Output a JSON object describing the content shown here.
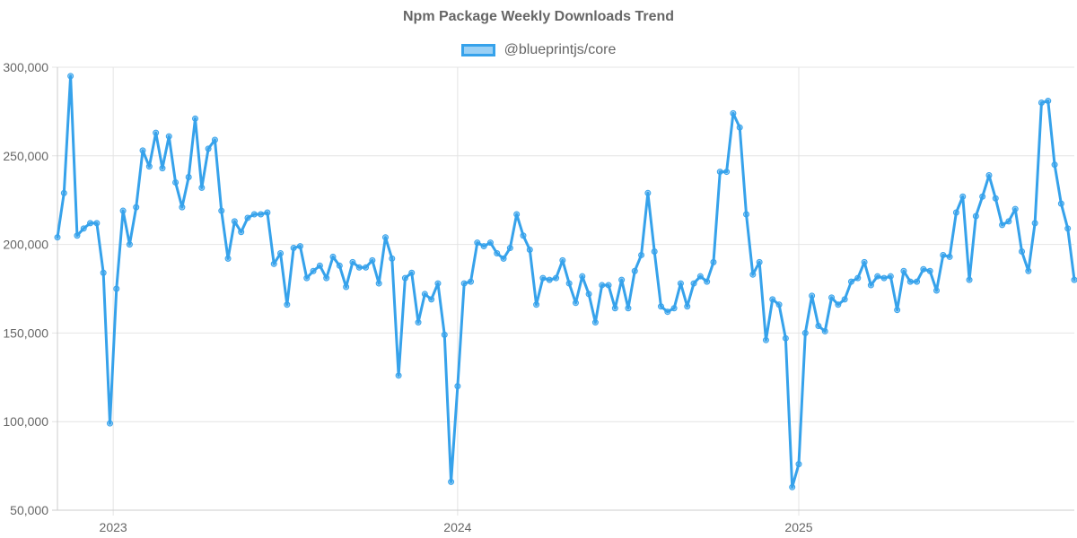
{
  "chart_data": {
    "type": "line",
    "title": "Npm Package Weekly Downloads Trend",
    "xlabel": "",
    "ylabel": "",
    "ylim": [
      50000,
      300000
    ],
    "y_ticks": [
      300000,
      250000,
      200000,
      150000,
      100000,
      50000
    ],
    "y_tick_labels": [
      "300,000",
      "250,000",
      "200,000",
      "150,000",
      "100,000",
      "50,000"
    ],
    "x_ticks": [
      {
        "label": "2023",
        "week": 8.5
      },
      {
        "label": "2024",
        "week": 61
      },
      {
        "label": "2025",
        "week": 113
      }
    ],
    "grid": true,
    "legend": "top-center",
    "color": "#36a2eb",
    "series": [
      {
        "name": "@blueprintjs/core",
        "values": [
          204000,
          229000,
          295000,
          205000,
          209000,
          212000,
          212000,
          184000,
          99000,
          175000,
          219000,
          200000,
          221000,
          253000,
          244000,
          263000,
          243000,
          261000,
          235000,
          221000,
          238000,
          271000,
          232000,
          254000,
          259000,
          219000,
          192000,
          213000,
          207000,
          215000,
          217000,
          217000,
          218000,
          189000,
          195000,
          166000,
          198000,
          199000,
          181000,
          185000,
          188000,
          181000,
          193000,
          188000,
          176000,
          190000,
          187000,
          187000,
          191000,
          178000,
          204000,
          192000,
          126000,
          181000,
          184000,
          156000,
          172000,
          169000,
          178000,
          149000,
          66000,
          120000,
          178000,
          179000,
          201000,
          199000,
          201000,
          195000,
          192000,
          198000,
          217000,
          205000,
          197000,
          166000,
          181000,
          180000,
          181000,
          191000,
          178000,
          167000,
          182000,
          172000,
          156000,
          177000,
          177000,
          164000,
          180000,
          164000,
          185000,
          194000,
          229000,
          196000,
          165000,
          162000,
          164000,
          178000,
          165000,
          178000,
          182000,
          179000,
          190000,
          241000,
          241000,
          274000,
          266000,
          217000,
          183000,
          190000,
          146000,
          169000,
          166000,
          147000,
          63000,
          76000,
          150000,
          171000,
          154000,
          151000,
          170000,
          166000,
          169000,
          179000,
          181000,
          190000,
          177000,
          182000,
          181000,
          182000,
          163000,
          185000,
          179000,
          179000,
          186000,
          185000,
          174000,
          194000,
          193000,
          218000,
          227000,
          180000,
          216000,
          227000,
          239000,
          226000,
          211000,
          213000,
          220000,
          196000,
          185000,
          212000,
          280000,
          281000,
          245000,
          223000,
          209000,
          180000
        ]
      }
    ]
  }
}
